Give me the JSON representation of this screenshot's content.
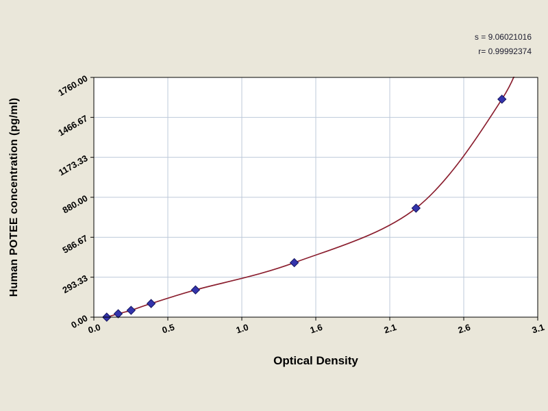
{
  "figure": {
    "background": "#eae7da"
  },
  "stats": {
    "s_line": "s = 9.06021016",
    "r_line": "r= 0.99992374"
  },
  "chart_data": {
    "type": "scatter",
    "title": "",
    "xlabel": "Optical Density",
    "ylabel": "Human POTEE concentration (pg/ml)",
    "xlim": [
      0,
      3.1
    ],
    "ylim": [
      0,
      1760
    ],
    "x_ticks": [
      0,
      0.5167,
      1.0333,
      1.55,
      2.0667,
      2.5833,
      3.1
    ],
    "x_tick_labels": [
      "0.0",
      "0.5",
      "1.0",
      "1.6",
      "2.1",
      "2.6",
      "3.1"
    ],
    "y_ticks": [
      0,
      293.33,
      586.67,
      880,
      1173.33,
      1466.67,
      1760
    ],
    "y_tick_labels": [
      "0.00",
      "293.33",
      "586.67",
      "880.00",
      "1173.33",
      "1466.67",
      "1760.00"
    ],
    "grid": true,
    "legend": "none",
    "series": [
      {
        "name": "standard-points",
        "type": "scatter",
        "marker": "diamond",
        "color": "#3434ac",
        "edge_color": "#14145e",
        "points": [
          [
            0.09,
            0
          ],
          [
            0.17,
            25
          ],
          [
            0.26,
            50
          ],
          [
            0.4,
            100
          ],
          [
            0.71,
            200
          ],
          [
            1.4,
            400
          ],
          [
            2.25,
            800
          ],
          [
            2.85,
            1600
          ]
        ]
      },
      {
        "name": "fit-curve",
        "type": "line",
        "color": "#8b1f2f",
        "extend_to": [
          3.02,
          2050
        ]
      }
    ],
    "colors": {
      "plot_bg": "#ffffff",
      "grid": "#bdc9da",
      "axis": "#000000"
    }
  }
}
